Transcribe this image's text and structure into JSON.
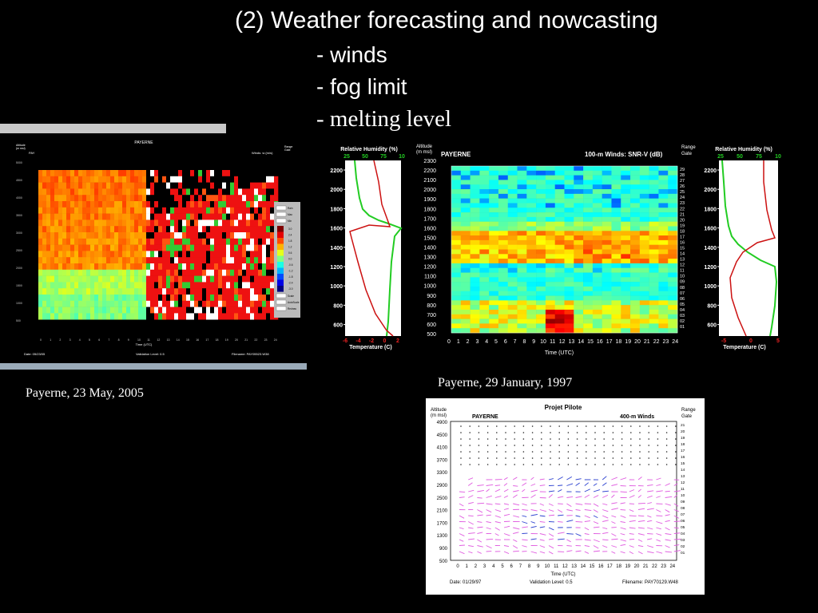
{
  "slide": {
    "title": "(2) Weather forecasting and nowcasting",
    "bullets": [
      "- winds",
      "- fog limit",
      "- melting level"
    ]
  },
  "captions": {
    "left": "Payerne, 23 May, 2005",
    "middle": "Payerne, 29 January, 1997"
  },
  "left_panel": {
    "station": "PAYERNE",
    "site_code": "PAY",
    "altitude_label": "Altitude",
    "altitude_unit": "(m msl)",
    "winds_label": "Winds:  w (m/s)",
    "range_label": "Range",
    "gate_label": "Gate",
    "date": "Date:  05/23/05",
    "validation": "Validation Level:  0.5",
    "filename": "Filename:  PAY05523.W38",
    "xlabel": "Time (UTC)",
    "legend_buttons": [
      "Rain",
      "Max",
      "Min",
      "Scale",
      "AutoScale",
      "Redraw"
    ],
    "legend_values": [
      "3.0",
      "2.4",
      "1.8",
      "1.2",
      "0.6",
      "0.0",
      "-0.6",
      "-1.2",
      "-1.8",
      "-2.4",
      "-3.0"
    ]
  },
  "middle_chart": {
    "station": "PAYERNE",
    "title": "100-m Winds:  SNR-V (dB)",
    "altitude_label": "Altitude",
    "altitude_unit": "(m msl)",
    "range_label": "Range",
    "gate_label": "Gate",
    "xlabel": "Time (UTC)",
    "yticks": [
      "2300",
      "2200",
      "2100",
      "2000",
      "1900",
      "1800",
      "1700",
      "1600",
      "1500",
      "1400",
      "1300",
      "1200",
      "1100",
      "1000",
      "900",
      "800",
      "700",
      "600",
      "500"
    ],
    "xticks": [
      "0",
      "1",
      "2",
      "3",
      "4",
      "5",
      "6",
      "7",
      "8",
      "9",
      "10",
      "11",
      "12",
      "13",
      "14",
      "15",
      "16",
      "17",
      "18",
      "19",
      "20",
      "21",
      "22",
      "23",
      "24"
    ],
    "gates": [
      "29",
      "28",
      "27",
      "26",
      "25",
      "24",
      "23",
      "22",
      "21",
      "20",
      "19",
      "18",
      "17",
      "16",
      "15",
      "14",
      "13",
      "12",
      "11",
      "10",
      "09",
      "08",
      "07",
      "06",
      "05",
      "04",
      "03",
      "02",
      "01"
    ]
  },
  "profile_left": {
    "rh_label": "Relative Humidity (%)",
    "rh_ticks": [
      "25",
      "50",
      "75",
      "10"
    ],
    "temp_label": "Temperature (C)",
    "temp_ticks": [
      "-6",
      "-4",
      "-2",
      "0",
      "2"
    ],
    "alt_ticks": [
      "2200",
      "2000",
      "1800",
      "1600",
      "1400",
      "1200",
      "1000",
      "800",
      "600"
    ]
  },
  "profile_right": {
    "rh_label": "Relative Humidity (%)",
    "rh_ticks": [
      "25",
      "50",
      "75",
      "10"
    ],
    "temp_label": "Temperature (C)",
    "temp_ticks": [
      "-5",
      "0",
      "5"
    ],
    "alt_ticks": [
      "2200",
      "2000",
      "1800",
      "1600",
      "1400",
      "1200",
      "1000",
      "800",
      "600"
    ]
  },
  "bottom_chart": {
    "title": "Projet Pilote",
    "station": "PAYERNE",
    "winds_label": "400-m Winds",
    "altitude_label": "Altitude",
    "altitude_unit": "(m msl)",
    "range_label": "Range",
    "gate_label": "Gate",
    "yticks": [
      "4900",
      "4500",
      "4100",
      "3700",
      "3300",
      "2900",
      "2500",
      "2100",
      "1700",
      "1300",
      "900",
      "500"
    ],
    "xticks": [
      "0",
      "1",
      "2",
      "3",
      "4",
      "5",
      "6",
      "7",
      "8",
      "9",
      "10",
      "11",
      "12",
      "13",
      "14",
      "15",
      "16",
      "17",
      "18",
      "19",
      "20",
      "21",
      "22",
      "23",
      "24"
    ],
    "gates": [
      "21",
      "20",
      "19",
      "18",
      "17",
      "16",
      "15",
      "14",
      "13",
      "12",
      "11",
      "10",
      "09",
      "08",
      "07",
      "06",
      "05",
      "04",
      "03",
      "02",
      "01"
    ],
    "xlabel": "Time (UTC)",
    "date": "Date:  01/29/97",
    "validation": "Validation Level:  0.5",
    "filename": "Filename:  PAY70129.W48"
  }
}
